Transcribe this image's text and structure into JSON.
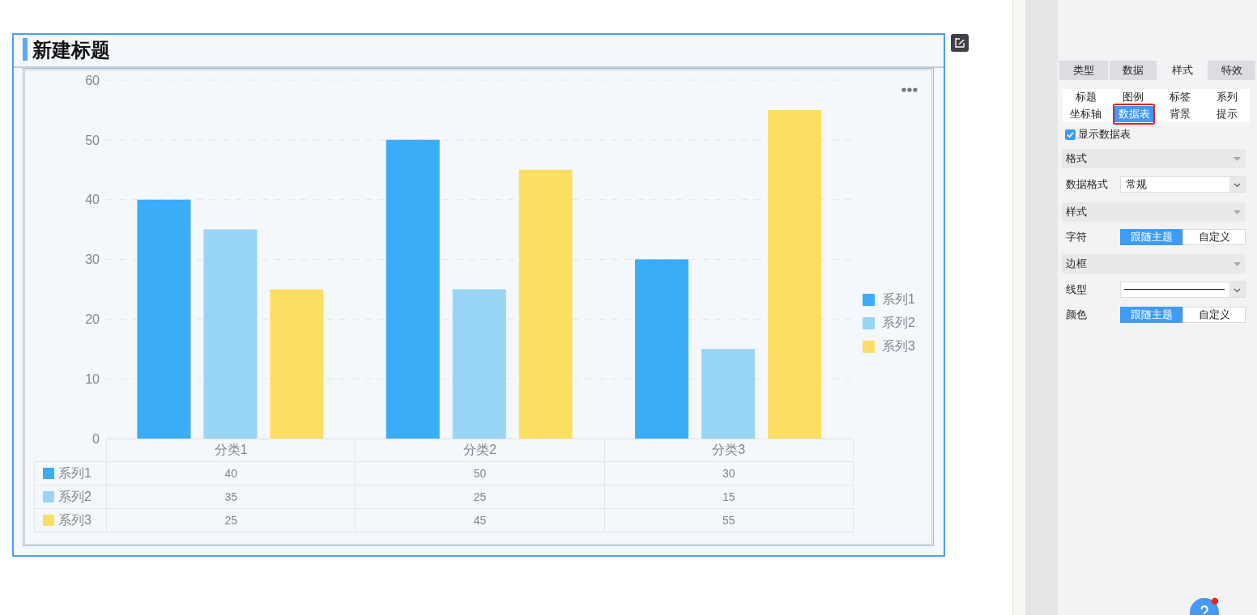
{
  "chart_data": [
    {
      "type": "bar",
      "title": "新建标题",
      "categories": [
        "分类1",
        "分类2",
        "分类3"
      ],
      "series": [
        {
          "name": "系列1",
          "color": "#3aacf8",
          "values": [
            40,
            50,
            30
          ]
        },
        {
          "name": "系列2",
          "color": "#98d5f6",
          "values": [
            35,
            25,
            15
          ]
        },
        {
          "name": "系列3",
          "color": "#fadf63",
          "values": [
            25,
            45,
            55
          ]
        }
      ],
      "ylim": [
        0,
        60
      ],
      "yticks": [
        0,
        10,
        20,
        30,
        40,
        50,
        60
      ],
      "grid": "y",
      "legend": "right",
      "data_labels": true
    },
    {
      "type": "other",
      "annotations": [
        "类型",
        "数据",
        "样式",
        "特效",
        "标题",
        "图例",
        "标签",
        "系列",
        "坐标轴",
        "数据表",
        "背景",
        "提示",
        "显示数据表",
        "格式",
        "数据格式",
        "常规",
        "样式",
        "字符",
        "跟随主题",
        "自定义",
        "边框",
        "线型",
        "颜色",
        "跟随主题",
        "自定义"
      ]
    }
  ]
}
